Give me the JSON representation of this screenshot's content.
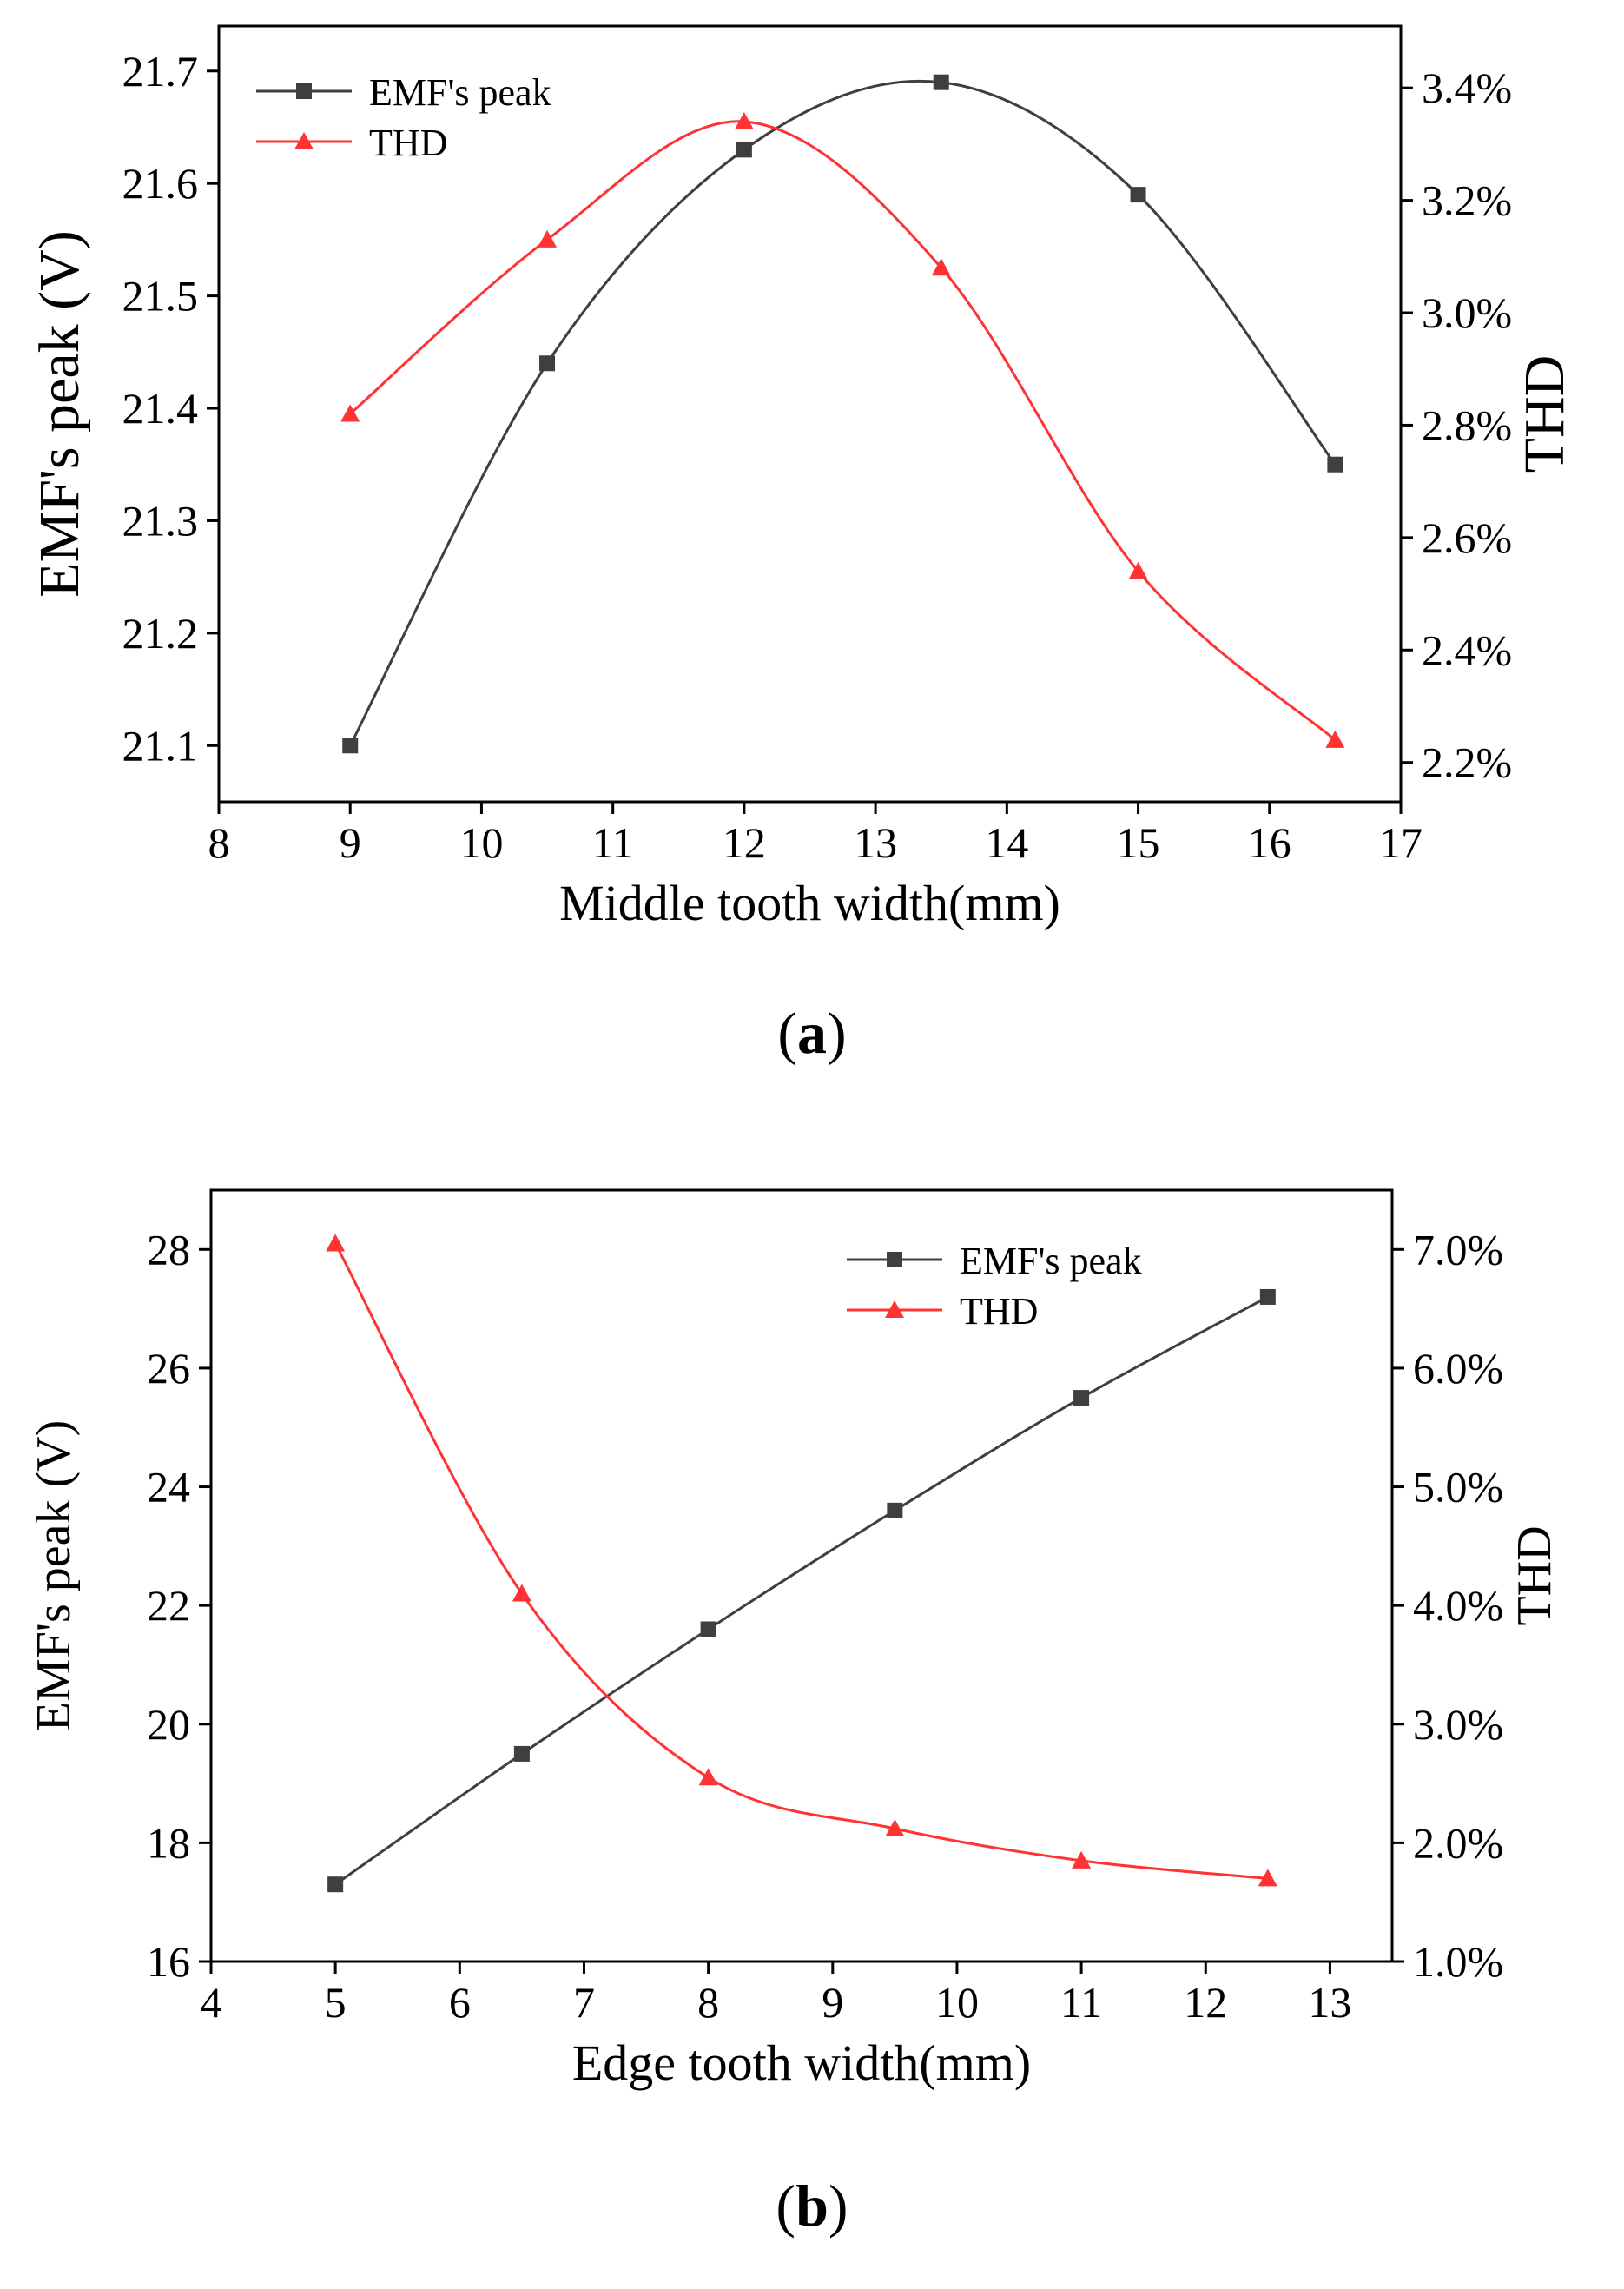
{
  "chart_data": [
    {
      "type": "line",
      "caption": "a",
      "xlabel": "Middle tooth width(mm)",
      "ylabel": "EMF's peak (V)",
      "y2label": "THD",
      "xlim": [
        8,
        17
      ],
      "xticks": [
        "8",
        "9",
        "10",
        "11",
        "12",
        "13",
        "14",
        "15",
        "16",
        "17"
      ],
      "ylim": [
        21.05,
        21.74
      ],
      "yticks": [
        "21.1",
        "21.2",
        "21.3",
        "21.4",
        "21.5",
        "21.6",
        "21.7"
      ],
      "y2lim": [
        2.13,
        3.51
      ],
      "y2ticks": [
        "2.2%",
        "2.4%",
        "2.6%",
        "2.8%",
        "3.0%",
        "3.2%",
        "3.4%"
      ],
      "legend_position": "top-left",
      "series": [
        {
          "name": "EMF's peak",
          "axis": "left",
          "color": "#3f3f3f",
          "marker": "square",
          "x": [
            9,
            10.5,
            12,
            13.5,
            15,
            16.5
          ],
          "values": [
            21.1,
            21.44,
            21.63,
            21.69,
            21.59,
            21.35
          ]
        },
        {
          "name": "THD",
          "axis": "right",
          "color": "#ff3333",
          "marker": "triangle",
          "x": [
            9,
            10.5,
            12,
            13.5,
            15,
            16.5
          ],
          "values": [
            2.82,
            3.13,
            3.34,
            3.08,
            2.54,
            2.24
          ]
        }
      ]
    },
    {
      "type": "line",
      "caption": "b",
      "xlabel": "Edge tooth width(mm)",
      "ylabel": "EMF's peak (V)",
      "y2label": "THD",
      "xlim": [
        4,
        13.5
      ],
      "xticks": [
        "4",
        "5",
        "6",
        "7",
        "8",
        "9",
        "10",
        "11",
        "12",
        "13"
      ],
      "ylim": [
        16,
        29
      ],
      "yticks": [
        "16",
        "18",
        "20",
        "22",
        "24",
        "26",
        "28"
      ],
      "y2lim": [
        1.0,
        7.5
      ],
      "y2ticks": [
        "1.0%",
        "2.0%",
        "3.0%",
        "4.0%",
        "5.0%",
        "6.0%",
        "7.0%"
      ],
      "legend_position": "top-right",
      "series": [
        {
          "name": "EMF's peak",
          "axis": "left",
          "color": "#3f3f3f",
          "marker": "square",
          "x": [
            5,
            6.5,
            8,
            9.5,
            11,
            12.5
          ],
          "values": [
            17.3,
            19.5,
            21.6,
            23.6,
            25.5,
            27.2
          ]
        },
        {
          "name": "THD",
          "axis": "right",
          "color": "#ff3333",
          "marker": "triangle",
          "x": [
            5,
            6.5,
            8,
            9.5,
            11,
            12.5
          ],
          "values": [
            7.05,
            4.1,
            2.55,
            2.12,
            1.85,
            1.7
          ]
        }
      ]
    }
  ]
}
